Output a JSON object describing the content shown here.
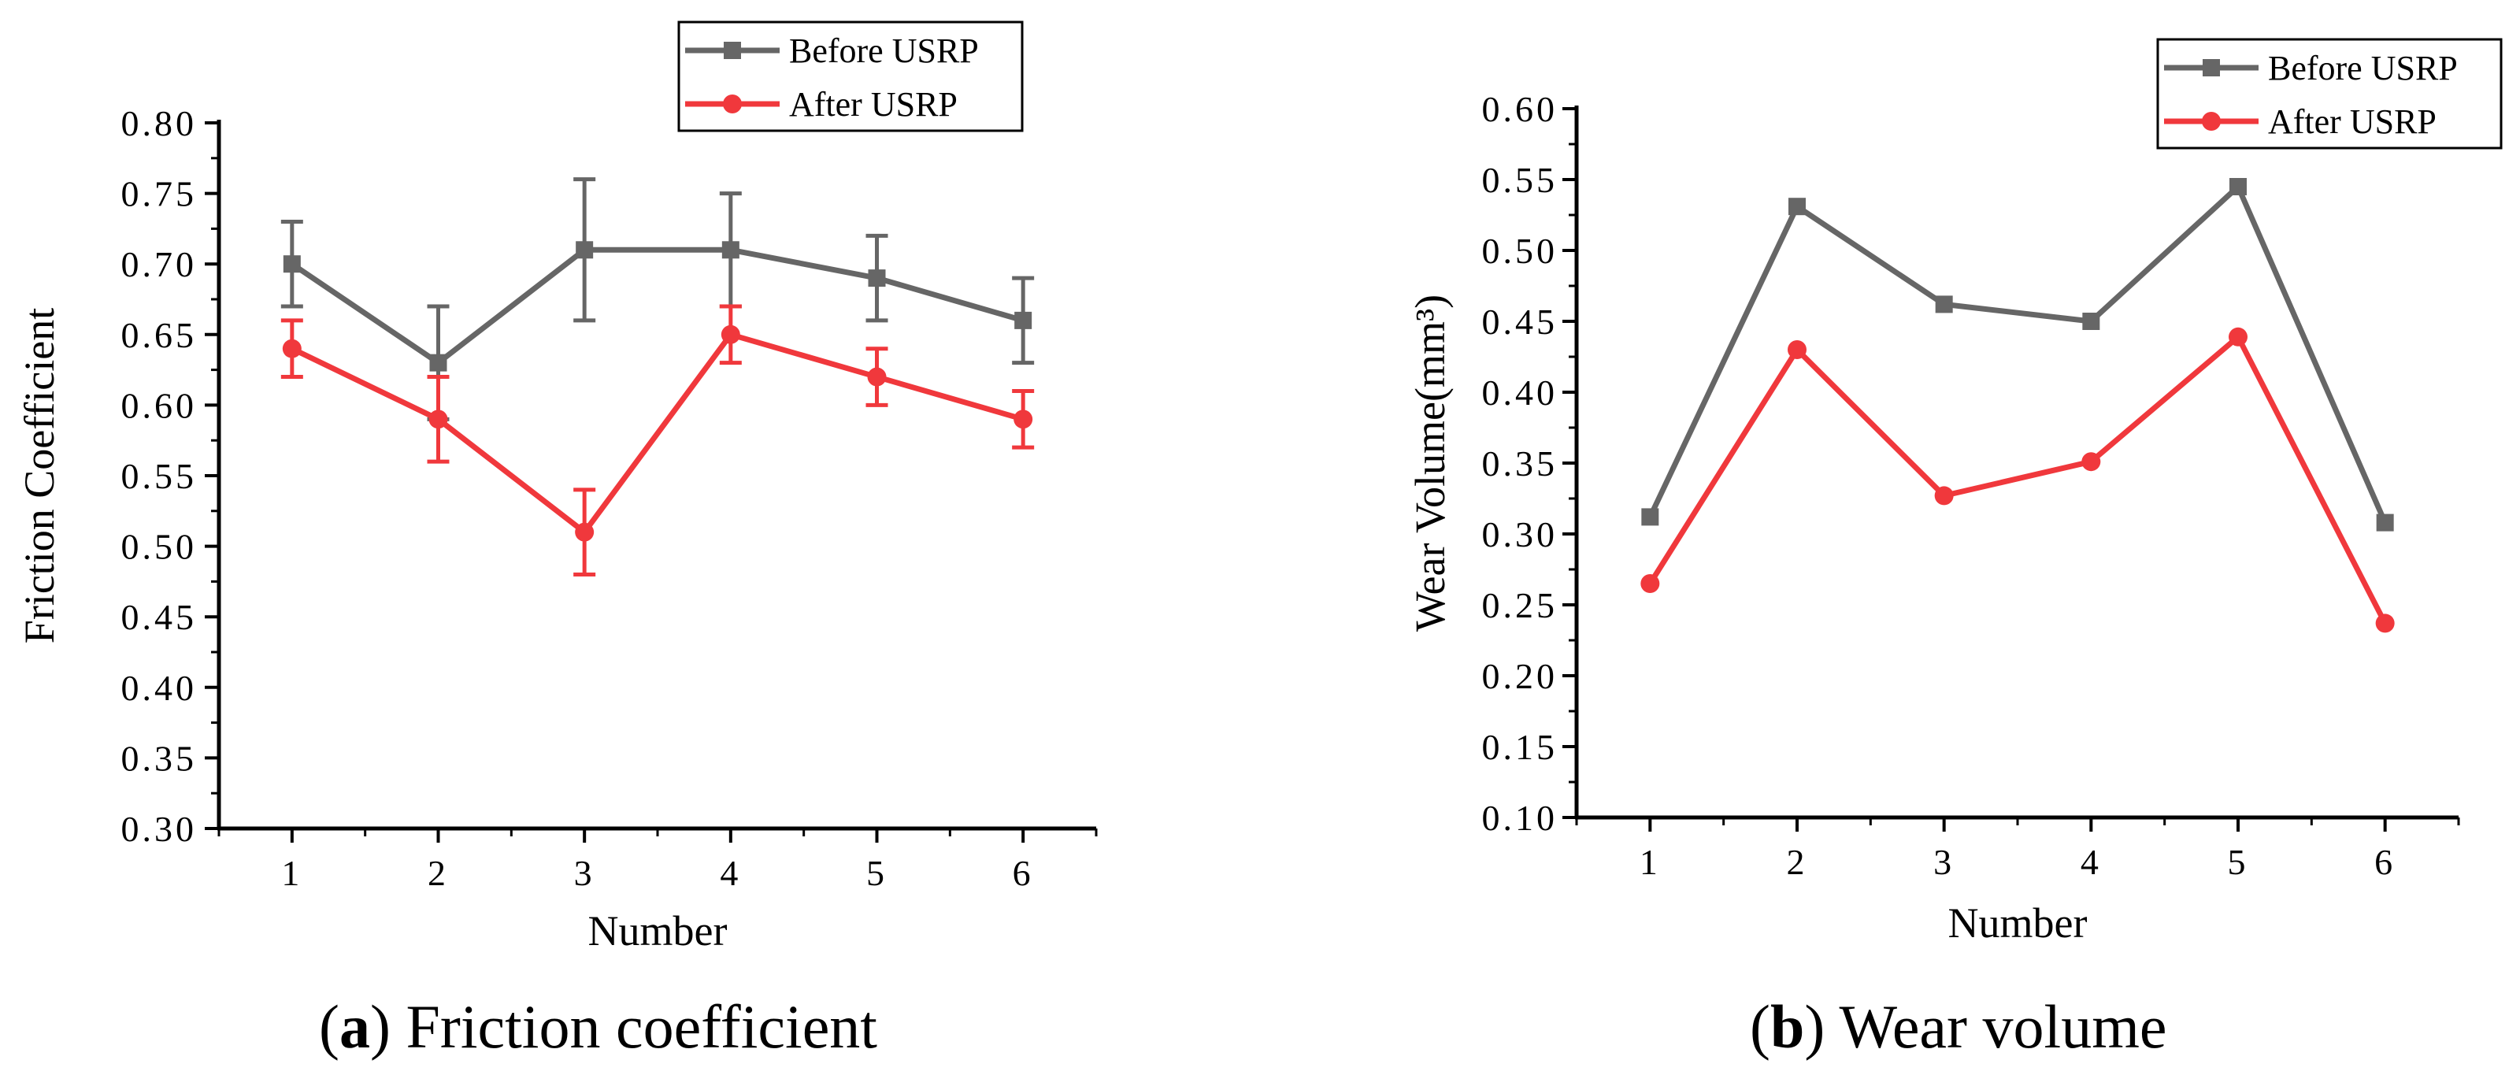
{
  "colors": {
    "before": "#666666",
    "after": "#f0383c",
    "axis": "#000000"
  },
  "chart_data": [
    {
      "type": "line",
      "x": [
        1,
        2,
        3,
        4,
        5,
        6
      ],
      "xlabel": "Number",
      "ylabel": "Friction Coefficient",
      "xlim": [
        0.5,
        6.5
      ],
      "ylim": [
        0.3,
        0.8
      ],
      "y_ticks": [
        "0.30",
        "0.35",
        "0.40",
        "0.45",
        "0.50",
        "0.55",
        "0.60",
        "0.65",
        "0.70",
        "0.75",
        "0.80"
      ],
      "x_ticks": [
        "1",
        "2",
        "3",
        "4",
        "5",
        "6"
      ],
      "grid": false,
      "legend": "top-right",
      "caption_letter": "a",
      "caption_text": ") Friction coefficient",
      "series": [
        {
          "name": "Before USRP",
          "marker": "square",
          "values": [
            0.7,
            0.63,
            0.71,
            0.71,
            0.69,
            0.66
          ],
          "errors": [
            0.03,
            0.04,
            0.05,
            0.04,
            0.03,
            0.03
          ]
        },
        {
          "name": "After USRP",
          "marker": "circle",
          "values": [
            0.64,
            0.59,
            0.51,
            0.65,
            0.62,
            0.59
          ],
          "errors": [
            0.02,
            0.03,
            0.03,
            0.02,
            0.02,
            0.02
          ]
        }
      ]
    },
    {
      "type": "line",
      "x": [
        1,
        2,
        3,
        4,
        5,
        6
      ],
      "xlabel": "Number",
      "ylabel": "Wear Volume(mm³)",
      "xlim": [
        0.5,
        6.5
      ],
      "ylim": [
        0.1,
        0.6
      ],
      "y_ticks": [
        "0.10",
        "0.15",
        "0.20",
        "0.25",
        "0.30",
        "0.35",
        "0.40",
        "0.45",
        "0.50",
        "0.55",
        "0.60"
      ],
      "x_ticks": [
        "1",
        "2",
        "3",
        "4",
        "5",
        "6"
      ],
      "grid": false,
      "legend": "top-right",
      "caption_letter": "b",
      "caption_text": ") Wear volume",
      "series": [
        {
          "name": "Before USRP",
          "marker": "square",
          "values": [
            0.312,
            0.531,
            0.462,
            0.45,
            0.545,
            0.308
          ]
        },
        {
          "name": "After USRP",
          "marker": "circle",
          "values": [
            0.265,
            0.43,
            0.327,
            0.351,
            0.439,
            0.237
          ]
        }
      ]
    }
  ]
}
